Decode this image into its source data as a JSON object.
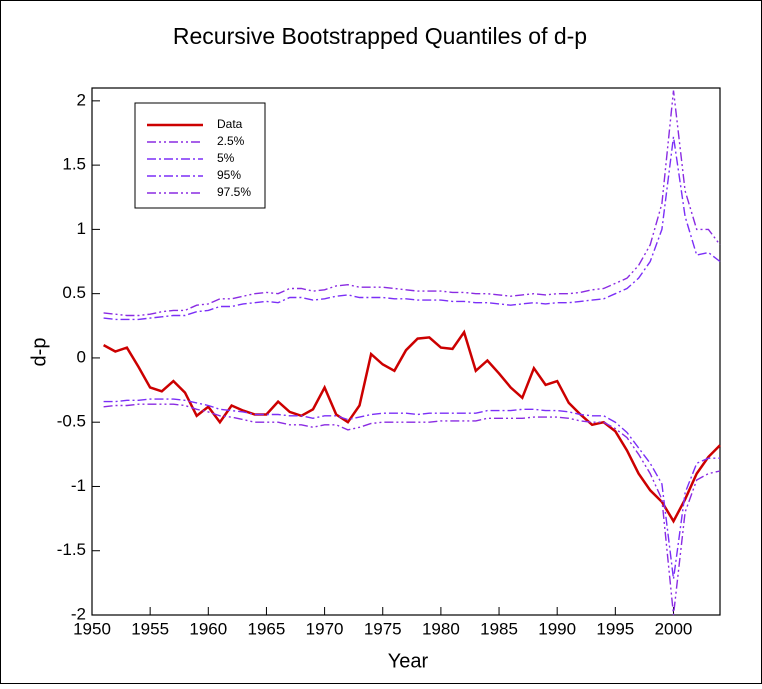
{
  "chart_data": {
    "type": "line",
    "title": "Recursive Bootstrapped Quantiles of d-p",
    "x_label": "Year",
    "y_label": "d-p",
    "x": [
      1951,
      1952,
      1953,
      1954,
      1955,
      1956,
      1957,
      1958,
      1959,
      1960,
      1961,
      1962,
      1963,
      1964,
      1965,
      1966,
      1967,
      1968,
      1969,
      1970,
      1971,
      1972,
      1973,
      1974,
      1975,
      1976,
      1977,
      1978,
      1979,
      1980,
      1981,
      1982,
      1983,
      1984,
      1985,
      1986,
      1987,
      1988,
      1989,
      1990,
      1991,
      1992,
      1993,
      1994,
      1995,
      1996,
      1997,
      1998,
      1999,
      2000,
      2001,
      2002,
      2003,
      2004
    ],
    "series": [
      {
        "name": "Data",
        "color": "#cc0000",
        "style": "solid",
        "values": [
          0.1,
          0.05,
          0.08,
          -0.07,
          -0.23,
          -0.26,
          -0.18,
          -0.27,
          -0.45,
          -0.38,
          -0.5,
          -0.37,
          -0.41,
          -0.44,
          -0.44,
          -0.34,
          -0.42,
          -0.45,
          -0.4,
          -0.23,
          -0.44,
          -0.5,
          -0.37,
          0.03,
          -0.05,
          -0.1,
          0.06,
          0.15,
          0.16,
          0.08,
          0.07,
          0.2,
          -0.1,
          -0.02,
          -0.12,
          -0.23,
          -0.31,
          -0.08,
          -0.21,
          -0.18,
          -0.35,
          -0.44,
          -0.52,
          -0.5,
          -0.57,
          -0.72,
          -0.9,
          -1.03,
          -1.12,
          -1.27,
          -1.1,
          -0.9,
          -0.77,
          -0.68
        ]
      },
      {
        "name": "2.5%",
        "color": "#8a2be2",
        "style": "dashdotdot",
        "values": [
          -0.38,
          -0.37,
          -0.37,
          -0.36,
          -0.36,
          -0.36,
          -0.36,
          -0.37,
          -0.4,
          -0.42,
          -0.45,
          -0.46,
          -0.48,
          -0.5,
          -0.5,
          -0.5,
          -0.52,
          -0.52,
          -0.54,
          -0.52,
          -0.52,
          -0.56,
          -0.54,
          -0.51,
          -0.5,
          -0.5,
          -0.5,
          -0.5,
          -0.5,
          -0.49,
          -0.49,
          -0.49,
          -0.49,
          -0.47,
          -0.47,
          -0.47,
          -0.47,
          -0.46,
          -0.46,
          -0.46,
          -0.47,
          -0.49,
          -0.5,
          -0.5,
          -0.55,
          -0.62,
          -0.75,
          -0.9,
          -1.1,
          -2.0,
          -1.2,
          -0.95,
          -0.9,
          -0.88
        ]
      },
      {
        "name": "5%",
        "color": "#7b2ff7",
        "style": "dashdot",
        "values": [
          -0.34,
          -0.34,
          -0.33,
          -0.33,
          -0.32,
          -0.32,
          -0.32,
          -0.33,
          -0.35,
          -0.37,
          -0.4,
          -0.41,
          -0.42,
          -0.44,
          -0.44,
          -0.44,
          -0.45,
          -0.45,
          -0.47,
          -0.45,
          -0.45,
          -0.48,
          -0.46,
          -0.44,
          -0.43,
          -0.43,
          -0.43,
          -0.44,
          -0.43,
          -0.43,
          -0.43,
          -0.43,
          -0.43,
          -0.41,
          -0.41,
          -0.41,
          -0.4,
          -0.4,
          -0.41,
          -0.41,
          -0.42,
          -0.44,
          -0.45,
          -0.45,
          -0.5,
          -0.58,
          -0.7,
          -0.82,
          -0.98,
          -1.72,
          -1.05,
          -0.82,
          -0.78,
          -0.78
        ]
      },
      {
        "name": "95%",
        "color": "#7b2ff7",
        "style": "dashdot",
        "values": [
          0.31,
          0.3,
          0.3,
          0.3,
          0.31,
          0.32,
          0.33,
          0.33,
          0.36,
          0.37,
          0.4,
          0.4,
          0.42,
          0.43,
          0.44,
          0.43,
          0.47,
          0.47,
          0.45,
          0.46,
          0.48,
          0.49,
          0.47,
          0.47,
          0.47,
          0.46,
          0.46,
          0.45,
          0.45,
          0.45,
          0.44,
          0.44,
          0.43,
          0.43,
          0.42,
          0.41,
          0.42,
          0.43,
          0.42,
          0.43,
          0.43,
          0.44,
          0.45,
          0.46,
          0.5,
          0.54,
          0.62,
          0.75,
          1.0,
          1.72,
          1.1,
          0.8,
          0.82,
          0.75
        ]
      },
      {
        "name": "97.5%",
        "color": "#8a2be2",
        "style": "dashdotdot",
        "values": [
          0.35,
          0.34,
          0.33,
          0.33,
          0.34,
          0.36,
          0.37,
          0.37,
          0.41,
          0.42,
          0.46,
          0.46,
          0.48,
          0.5,
          0.51,
          0.5,
          0.54,
          0.54,
          0.52,
          0.53,
          0.56,
          0.57,
          0.55,
          0.55,
          0.55,
          0.54,
          0.53,
          0.52,
          0.52,
          0.52,
          0.51,
          0.51,
          0.5,
          0.5,
          0.49,
          0.48,
          0.49,
          0.5,
          0.49,
          0.5,
          0.5,
          0.51,
          0.53,
          0.54,
          0.58,
          0.62,
          0.72,
          0.88,
          1.2,
          2.08,
          1.3,
          1.0,
          1.0,
          0.88
        ]
      }
    ],
    "xlim": [
      1950,
      2004
    ],
    "ylim": [
      -2,
      2.1
    ],
    "xticks": [
      1950,
      1955,
      1960,
      1965,
      1970,
      1975,
      1980,
      1985,
      1990,
      1995,
      2000
    ],
    "yticks": [
      -2,
      -1.5,
      -1,
      -0.5,
      0,
      0.5,
      1,
      1.5,
      2
    ],
    "legend": "upper left",
    "grid": false
  }
}
